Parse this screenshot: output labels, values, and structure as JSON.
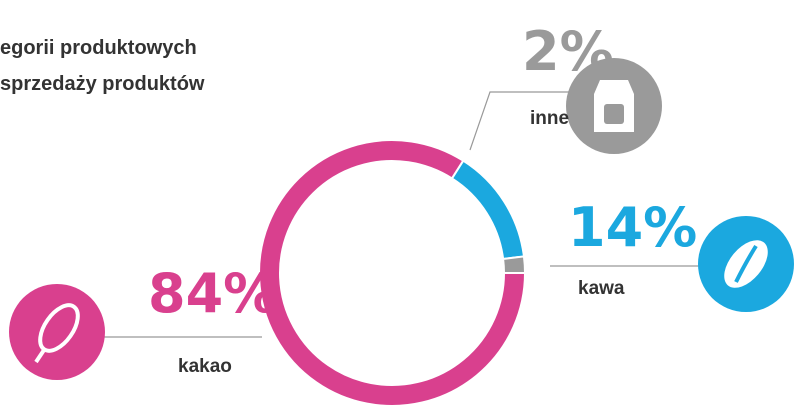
{
  "chart_data": {
    "type": "donut",
    "title_lines": [
      "egorii produktowych",
      "sprzedaży produktów"
    ],
    "categories": [
      "kakao",
      "kawa",
      "inne"
    ],
    "values": [
      84,
      14,
      2
    ],
    "value_labels": [
      "84%",
      "14%",
      "2%"
    ],
    "colors": [
      "#d9408e",
      "#1ba8df",
      "#9a9a9a"
    ]
  }
}
